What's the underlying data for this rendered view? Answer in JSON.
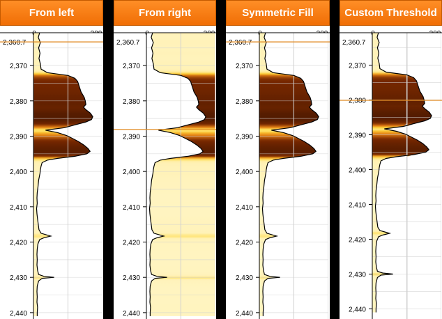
{
  "panels": [
    {
      "title": "From left",
      "fill_mode": "left"
    },
    {
      "title": "From right",
      "fill_mode": "right"
    },
    {
      "title": "Symmetric Fill",
      "fill_mode": "symmetric"
    },
    {
      "title": "Custom Threshold",
      "fill_mode": "threshold"
    }
  ],
  "colors": {
    "header": "#f47a10",
    "pale_fill": "#fff6c8",
    "yellow": "#ffd83a",
    "orange": "#e07a10",
    "dark": "#3d1400",
    "cursor": "#e08a20",
    "curve": "#000000",
    "grid": "#d0d0d0"
  },
  "chart_data": {
    "type": "line",
    "xlim": [
      0,
      200
    ],
    "x_ticks": [
      "0",
      "200"
    ],
    "ylim_top": 2360.7,
    "top_label": "2,360.7",
    "y_ticks": [
      {
        "value": 2370,
        "label": "2,370"
      },
      {
        "value": 2380,
        "label": "2,380"
      },
      {
        "value": 2390,
        "label": "2,390"
      },
      {
        "value": 2400,
        "label": "2,400"
      },
      {
        "value": 2410,
        "label": "2,410"
      },
      {
        "value": 2420,
        "label": "2,420"
      },
      {
        "value": 2430,
        "label": "2,430"
      },
      {
        "value": 2440,
        "label": "2,440"
      }
    ],
    "threshold_x": 100,
    "cursor_depths": [
      2363.3,
      2388.1,
      2363.3,
      2380.1
    ],
    "series": [
      {
        "points": [
          [
            2360.7,
            18
          ],
          [
            2362.0,
            14
          ],
          [
            2363.5,
            20
          ],
          [
            2365.0,
            15
          ],
          [
            2366.5,
            19
          ],
          [
            2368.0,
            16
          ],
          [
            2369.5,
            20
          ],
          [
            2371.0,
            22
          ],
          [
            2372.0,
            40
          ],
          [
            2372.8,
            100
          ],
          [
            2373.6,
            120
          ],
          [
            2374.5,
            128
          ],
          [
            2376.0,
            133
          ],
          [
            2377.5,
            138
          ],
          [
            2379.0,
            147
          ],
          [
            2380.0,
            150
          ],
          [
            2381.0,
            152
          ],
          [
            2381.8,
            145
          ],
          [
            2382.5,
            152
          ],
          [
            2383.5,
            165
          ],
          [
            2384.5,
            172
          ],
          [
            2385.3,
            168
          ],
          [
            2386.0,
            152
          ],
          [
            2386.8,
            120
          ],
          [
            2387.6,
            90
          ],
          [
            2388.3,
            35
          ],
          [
            2389.0,
            70
          ],
          [
            2389.8,
            96
          ],
          [
            2390.5,
            110
          ],
          [
            2391.5,
            130
          ],
          [
            2392.5,
            146
          ],
          [
            2393.5,
            158
          ],
          [
            2394.3,
            164
          ],
          [
            2395.0,
            155
          ],
          [
            2395.7,
            120
          ],
          [
            2396.3,
            70
          ],
          [
            2396.8,
            40
          ],
          [
            2397.5,
            25
          ],
          [
            2398.5,
            22
          ],
          [
            2399.5,
            20
          ],
          [
            2400.5,
            19
          ],
          [
            2401.5,
            17
          ],
          [
            2402.5,
            15
          ],
          [
            2403.5,
            14
          ],
          [
            2404.5,
            13
          ],
          [
            2406.0,
            11
          ],
          [
            2407.5,
            10
          ],
          [
            2409.0,
            11
          ],
          [
            2410.5,
            9
          ],
          [
            2412.0,
            10
          ],
          [
            2413.5,
            12
          ],
          [
            2415.0,
            14
          ],
          [
            2416.5,
            16
          ],
          [
            2417.5,
            22
          ],
          [
            2418.3,
            50
          ],
          [
            2418.8,
            30
          ],
          [
            2419.3,
            18
          ],
          [
            2420.5,
            13
          ],
          [
            2422.0,
            11
          ],
          [
            2423.5,
            10
          ],
          [
            2425.0,
            11
          ],
          [
            2426.5,
            10
          ],
          [
            2428.0,
            12
          ],
          [
            2429.2,
            15
          ],
          [
            2429.7,
            30
          ],
          [
            2430.0,
            60
          ],
          [
            2430.3,
            25
          ],
          [
            2431.0,
            15
          ],
          [
            2432.5,
            11
          ],
          [
            2434.0,
            10
          ],
          [
            2435.5,
            11
          ],
          [
            2437.0,
            10
          ],
          [
            2438.5,
            12
          ],
          [
            2440.0,
            11
          ],
          [
            2441.0,
            11
          ]
        ]
      }
    ]
  }
}
